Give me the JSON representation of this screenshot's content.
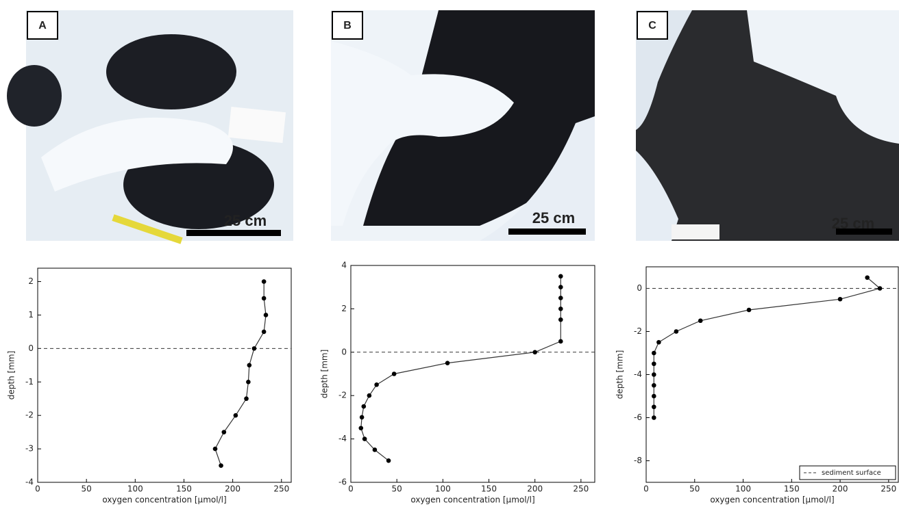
{
  "panels": [
    {
      "label": "A",
      "scale": "25 cm"
    },
    {
      "label": "B",
      "scale": "25 cm"
    },
    {
      "label": "C",
      "scale": "25 cm"
    }
  ],
  "chart_data": [
    {
      "type": "line",
      "xlabel": "oxygen concentration [µmol/l]",
      "ylabel": "depth [mm]",
      "xlim": [
        0,
        260
      ],
      "ylim": [
        -4,
        2.4
      ],
      "xticks": [
        0,
        50,
        100,
        150,
        200,
        250
      ],
      "yticks": [
        -4,
        -3,
        -2,
        -1,
        0,
        1,
        2
      ],
      "hline": 0,
      "color": "#000000",
      "x": [
        232,
        232,
        234,
        232,
        222,
        217,
        216,
        214,
        203,
        191,
        182,
        188
      ],
      "y": [
        2,
        1.5,
        1,
        0.5,
        0,
        -0.5,
        -1,
        -1.5,
        -2,
        -2.5,
        -3,
        -3.5
      ]
    },
    {
      "type": "line",
      "xlabel": "oxygen concentration [µmol/l]",
      "ylabel": "depth [mm]",
      "xlim": [
        0,
        265
      ],
      "ylim": [
        -6,
        4
      ],
      "xticks": [
        0,
        50,
        100,
        150,
        200,
        250
      ],
      "yticks": [
        -6,
        -4,
        -2,
        0,
        2,
        4
      ],
      "hline": 0,
      "color": "#000000",
      "x": [
        228,
        228,
        228,
        228,
        228,
        228,
        200,
        105,
        47,
        28,
        20,
        14,
        12,
        11,
        15,
        26,
        41
      ],
      "y": [
        3.5,
        3,
        2.5,
        2,
        1.5,
        0.5,
        0,
        -0.5,
        -1,
        -1.5,
        -2,
        -2.5,
        -3,
        -3.5,
        -4,
        -4.5,
        -5
      ]
    },
    {
      "type": "line",
      "xlabel": "oxygen concentration [µmol/l]",
      "ylabel": "depth [mm]",
      "xlim": [
        0,
        260
      ],
      "ylim": [
        -9,
        1
      ],
      "xticks": [
        0,
        50,
        100,
        150,
        200,
        250
      ],
      "yticks": [
        -8,
        -6,
        -4,
        -2,
        0
      ],
      "hline": 0,
      "hline_label": "sediment surface",
      "legend": "lower right",
      "color": "#000000",
      "x": [
        228,
        241,
        200,
        106,
        56,
        31,
        13,
        8,
        8,
        8,
        8,
        8,
        8,
        8
      ],
      "y": [
        0.5,
        0,
        -0.5,
        -1,
        -1.5,
        -2,
        -2.5,
        -3,
        -3.5,
        -4,
        -4.5,
        -5,
        -5.5,
        -6
      ]
    }
  ]
}
